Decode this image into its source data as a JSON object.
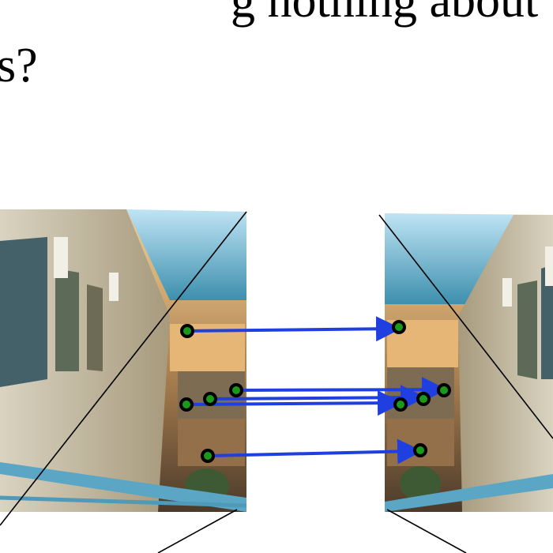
{
  "slide": {
    "quote_mark": "”",
    "line1": "g nothing about t",
    "line2": "s?"
  }
}
